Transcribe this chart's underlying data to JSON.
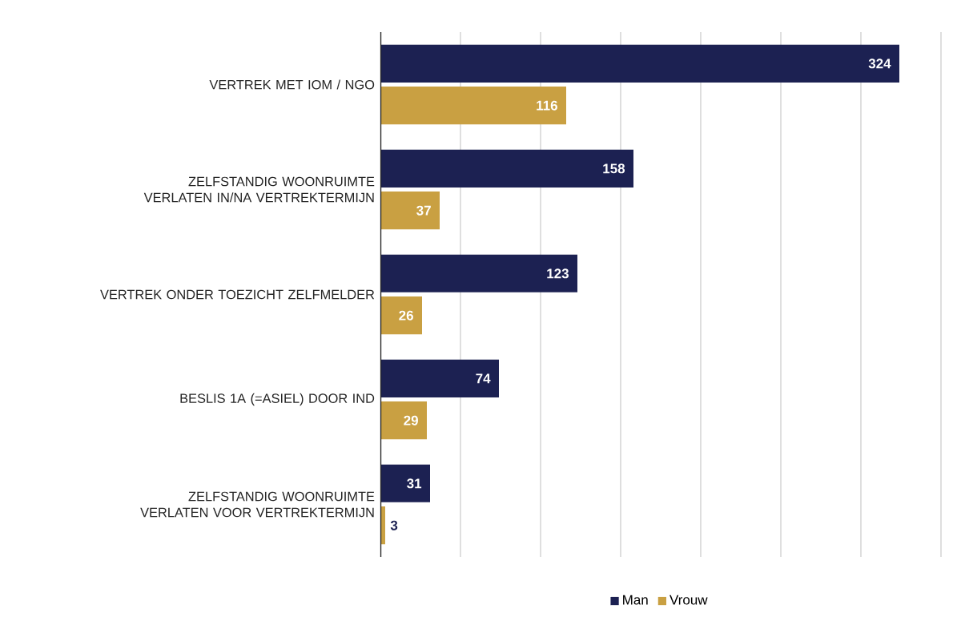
{
  "chart_data": {
    "type": "bar",
    "orientation": "horizontal",
    "categories": [
      "VERTREK MET IOM / NGO",
      "ZELFSTANDIG WOONRUIMTE VERLATEN IN/NA VERTREKTERMIJN",
      "VERTREK ONDER TOEZICHT ZELFMELDER",
      "BESLIS 1A (=ASIEL) DOOR IND",
      "ZELFSTANDIG WOONRUIMTE VERLATEN VOOR VERTREKTERMIJN"
    ],
    "series": [
      {
        "name": "Man",
        "color": "#1c2152",
        "values": [
          324,
          158,
          123,
          74,
          31
        ]
      },
      {
        "name": "Vrouw",
        "color": "#c9a042",
        "values": [
          116,
          37,
          26,
          29,
          3
        ]
      }
    ],
    "xlim": [
      0,
      350
    ],
    "xticks": [
      {
        "value": 0,
        "label": null
      },
      {
        "value": 50,
        "label": null
      },
      {
        "value": 100,
        "label": null
      },
      {
        "value": 150,
        "label": null
      },
      {
        "value": 200,
        "label": null
      },
      {
        "value": 250,
        "label": null
      },
      {
        "value": 300,
        "label": null
      },
      {
        "value": 350,
        "label": null
      }
    ],
    "grid": "x",
    "tick_labels": "y",
    "data_labels": true,
    "legend": "bottom"
  }
}
